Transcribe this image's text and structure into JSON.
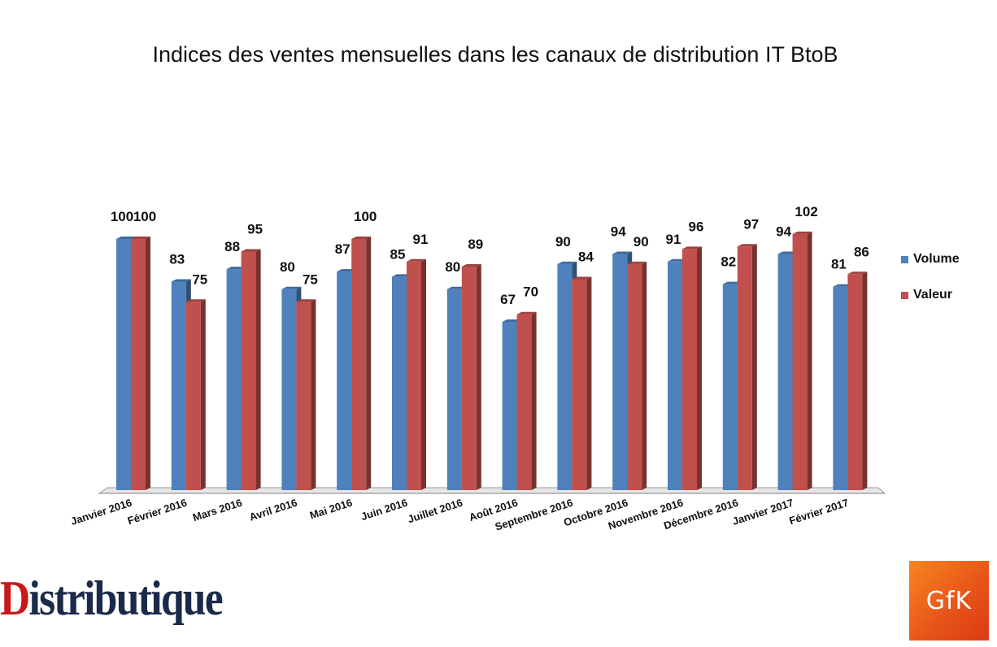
{
  "chart_data": {
    "type": "bar",
    "title": "Indices des ventes mensuelles dans les canaux de distribution IT BtoB",
    "categories": [
      "Janvier 2016",
      "Février 2016",
      "Mars 2016",
      "Avril 2016",
      "Mai 2016",
      "Juin 2016",
      "Juillet 2016",
      "Août 2016",
      "Septembre 2016",
      "Octobre 2016",
      "Novembre 2016",
      "Décembre 2016",
      "Janvier 2017",
      "Février 2017"
    ],
    "series": [
      {
        "name": "Volume",
        "color": "#4f81bd",
        "values": [
          100,
          83,
          88,
          80,
          87,
          85,
          80,
          67,
          90,
          94,
          91,
          82,
          94,
          81
        ]
      },
      {
        "name": "Valeur",
        "color": "#c0504d",
        "values": [
          100,
          75,
          95,
          75,
          100,
          91,
          89,
          70,
          84,
          90,
          96,
          97,
          102,
          86
        ]
      }
    ],
    "ylim": [
      0,
      100
    ],
    "grid": false,
    "legend_position": "right"
  },
  "logos": {
    "distributique": {
      "first_letter": "D",
      "rest": "istributique"
    },
    "gfk": "GfK"
  }
}
